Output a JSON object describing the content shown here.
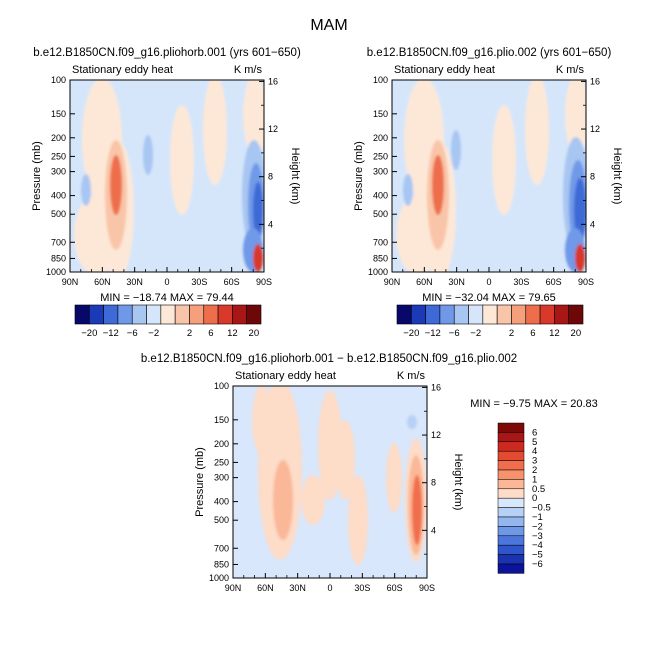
{
  "figure": {
    "title": "MAM"
  },
  "chart_data": [
    {
      "type": "heatmap",
      "title": "b.e12.B1850CN.f09_g16.pliohorb.001 (yrs 601−650)",
      "left_label": "Stationary eddy heat",
      "right_label": "K m/s",
      "xlabel": "",
      "ylabel": "Pressure (mb)",
      "ylabel_right": "Height (km)",
      "x_ticks": [
        "90N",
        "60N",
        "30N",
        "0",
        "30S",
        "60S",
        "90S"
      ],
      "y_ticks": [
        "100",
        "150",
        "200",
        "250",
        "300",
        "400",
        "500",
        "700",
        "850",
        "1000"
      ],
      "y_ticks_right": [
        "16",
        "12",
        "8",
        "4"
      ],
      "stats": "MIN = −18.74   MAX =  79.44",
      "min": -18.74,
      "max": 79.44
    },
    {
      "type": "heatmap",
      "title": "b.e12.B1850CN.f09_g16.plio.002 (yrs 601−650)",
      "left_label": "Stationary eddy heat",
      "right_label": "K m/s",
      "xlabel": "",
      "ylabel": "Pressure (mb)",
      "ylabel_right": "Height (km)",
      "x_ticks": [
        "90N",
        "60N",
        "30N",
        "0",
        "30S",
        "60S",
        "90S"
      ],
      "y_ticks": [
        "100",
        "150",
        "200",
        "250",
        "300",
        "400",
        "500",
        "700",
        "850",
        "1000"
      ],
      "y_ticks_right": [
        "16",
        "12",
        "8",
        "4"
      ],
      "stats": "MIN = −32.04   MAX =  79.65",
      "min": -32.04,
      "max": 79.65
    },
    {
      "type": "heatmap",
      "title": "b.e12.B1850CN.f09_g16.pliohorb.001 − b.e12.B1850CN.f09_g16.plio.002",
      "left_label": "Stationary eddy heat",
      "right_label": "K m/s",
      "xlabel": "",
      "ylabel": "Pressure (mb)",
      "ylabel_right": "Height (km)",
      "x_ticks": [
        "90N",
        "60N",
        "30N",
        "0",
        "30S",
        "60S",
        "90S"
      ],
      "y_ticks": [
        "100",
        "150",
        "200",
        "250",
        "300",
        "400",
        "500",
        "700",
        "850",
        "1000"
      ],
      "y_ticks_right": [
        "16",
        "12",
        "8",
        "4"
      ],
      "stats": "MIN =  −9.75   MAX =  20.83",
      "min": -9.75,
      "max": 20.83
    }
  ],
  "colorbar_top": {
    "labels": [
      "−20",
      "−12",
      "−6",
      "−2",
      "2",
      "6",
      "12",
      "20"
    ],
    "colors": [
      "#08086b",
      "#1a3ab8",
      "#3d6ad6",
      "#6f99e8",
      "#a8c6f2",
      "#d5e6fb",
      "#fde8d8",
      "#f9c5a8",
      "#f59f7c",
      "#ee6e4c",
      "#d8392a",
      "#a91616",
      "#6e0808"
    ]
  },
  "colorbar_diff": {
    "labels": [
      "6",
      "5",
      "4",
      "3",
      "2",
      "1",
      "0.5",
      "0",
      "−0.5",
      "−1",
      "−2",
      "−3",
      "−4",
      "−5",
      "−6"
    ],
    "colors": [
      "#7d0808",
      "#a91616",
      "#cc2a20",
      "#e24a32",
      "#f06e4c",
      "#f7926d",
      "#fab898",
      "#fddcc8",
      "#d8e7fb",
      "#b7d1f6",
      "#93b6ef",
      "#6e98e6",
      "#4b76dc",
      "#2f55cc",
      "#1a33b0",
      "#0a139a"
    ]
  }
}
